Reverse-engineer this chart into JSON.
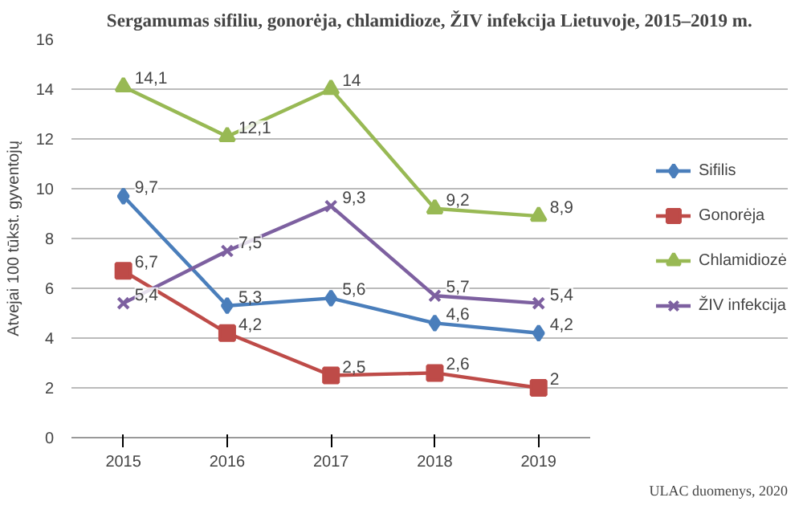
{
  "chart_data": {
    "type": "line",
    "title": "Sergamumas sifiliu, gonorėja, chlamidioze, ŽIV infekcija Lietuvoje, 2015–2019 m.",
    "ylabel": "Atvejai 100 tūkst. gyventojų",
    "categories": [
      "2015",
      "2016",
      "2017",
      "2018",
      "2019"
    ],
    "series": [
      {
        "name": "Sifilis",
        "color": "#4a7ebb",
        "marker": "diamond",
        "values": [
          9.7,
          5.3,
          5.6,
          4.6,
          4.2
        ],
        "value_labels": [
          "9,7",
          "5,3",
          "5,6",
          "4,6",
          "4,2"
        ]
      },
      {
        "name": "Gonorėja",
        "color": "#be4b48",
        "marker": "square",
        "values": [
          6.7,
          4.2,
          2.5,
          2.6,
          2
        ],
        "value_labels": [
          "6,7",
          "4,2",
          "2,5",
          "2,6",
          "2"
        ]
      },
      {
        "name": "Chlamidiozė",
        "color": "#98b954",
        "marker": "triangle",
        "values": [
          14.1,
          12.1,
          14,
          9.2,
          8.9
        ],
        "value_labels": [
          "14,1",
          "12,1",
          "14",
          "9,2",
          "8,9"
        ]
      },
      {
        "name": "ŽIV infekcija",
        "color": "#7d60a0",
        "marker": "cross",
        "values": [
          5.4,
          7.5,
          9.3,
          5.7,
          5.4
        ],
        "value_labels": [
          "5,4",
          "7,5",
          "9,3",
          "5,7",
          "5,4"
        ]
      }
    ],
    "ylim": [
      0,
      16
    ],
    "yticks": [
      0,
      2,
      4,
      6,
      8,
      10,
      12,
      14,
      16
    ],
    "grid": "y",
    "legend": "right",
    "annotations": [
      "ULAC duomenys, 2020"
    ]
  }
}
